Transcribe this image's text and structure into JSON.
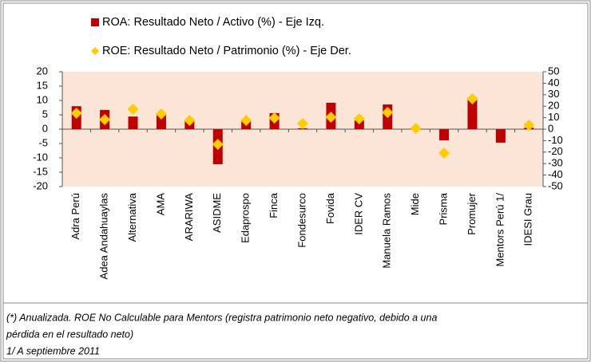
{
  "chart_data": {
    "type": "bar",
    "categories": [
      "Adra Perú",
      "Adea Andahuaylas",
      "Alternativa",
      "AMA",
      "ARARIWA",
      "ASIDME",
      "Edaprospo",
      "Finca",
      "Fondesurco",
      "Fovida",
      "IDER CV",
      "Manuela Ramos",
      "Mide",
      "Prisma",
      "Promujer",
      "Mentors Perú 1/",
      "IDESI Grau"
    ],
    "series": [
      {
        "name": "ROA: Resultado Neto / Activo (%) - Eje Izq.",
        "type": "bar",
        "color": "#c00000",
        "values": [
          8,
          6.7,
          4.4,
          5.3,
          3.3,
          -12.2,
          3,
          5.6,
          0.3,
          9.2,
          3,
          8.6,
          0.2,
          -3.9,
          11,
          -4.7,
          0.5
        ]
      },
      {
        "name": "ROE: Resultado Neto / Patrimonio (%) - Eje Der.",
        "type": "scatter",
        "axis": "y2",
        "color": "#ffcc00",
        "values": [
          13.9,
          8.3,
          17.4,
          13.2,
          7.6,
          -13.2,
          7.6,
          9.7,
          4.9,
          10.4,
          9,
          14.6,
          0.7,
          -20.8,
          26.4,
          null,
          3.5
        ]
      }
    ],
    "ylim": [
      -20,
      20
    ],
    "yticks": [
      -20,
      -15,
      -10,
      -5,
      0,
      5,
      10,
      15,
      20
    ],
    "y2lim": [
      -50,
      50
    ],
    "y2ticks": [
      -50,
      -40,
      -30,
      -20,
      -10,
      0,
      10,
      20,
      30,
      40,
      50
    ],
    "plot_background": "#fbe5d6",
    "notes": [
      "(*) Anualizada. ROE No Calculable para Mentors (registra patrimonio neto negativo, debido a una",
      "pérdida en el resultado neto)",
      "1/ A septiembre 2011"
    ]
  }
}
